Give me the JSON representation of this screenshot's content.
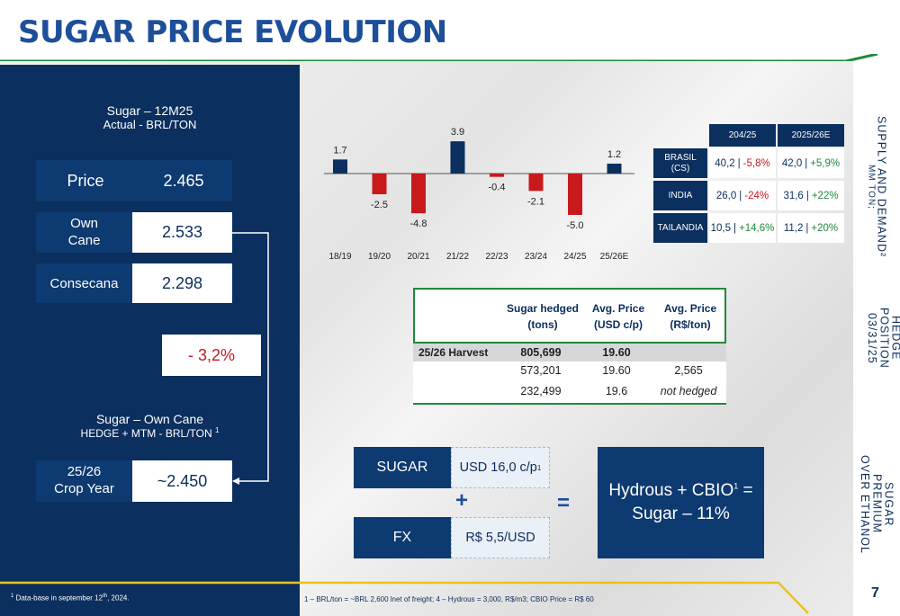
{
  "title": "SUGAR PRICE EVOLUTION",
  "left_panel": {
    "header_line1": "Sugar – 12M25",
    "header_line2": "Actual  - BRL/TON",
    "rows": [
      {
        "label": "Price",
        "value": "2.465"
      },
      {
        "label_line1": "Own",
        "label_line2": "Cane",
        "value": "2.533"
      },
      {
        "label": "Consecana",
        "value": "2.298"
      }
    ],
    "delta": "- 3,2%",
    "hedge_header_line1": "Sugar – Own Cane",
    "hedge_header_line2": "HEDGE + MTM  - BRL/TON",
    "hedge_header_sup": "1",
    "crop_label_line1": "25/26",
    "crop_label_line2": "Crop Year",
    "crop_value": "~2.450",
    "footnote": "Data-base in september 12",
    "footnote_sup_prefix": "1",
    "footnote_th": "th",
    "footnote_suffix": ", 2024."
  },
  "chart_data": {
    "type": "bar",
    "categories": [
      "18/19",
      "19/20",
      "20/21",
      "21/22",
      "22/23",
      "23/24",
      "24/25",
      "25/26E"
    ],
    "values": [
      1.7,
      -2.5,
      -4.8,
      3.9,
      -0.4,
      -2.1,
      -5.0,
      1.2
    ],
    "value_labels": [
      "1.7",
      "-2.5",
      "-4.8",
      "3.9",
      "-0.4",
      "-2.1",
      "-5.0",
      "1.2"
    ],
    "colors": {
      "positive": "#0b2f5e",
      "negative": "#c8191c"
    }
  },
  "supply_table": {
    "headers": [
      "204/25",
      "2025/26E"
    ],
    "rows": [
      {
        "label_line1": "BRASIL",
        "label_line2": "(CS)",
        "c1_a": "40,2",
        "c1_b": "-5,8%",
        "c1_sign": "neg",
        "c2_a": "42,0",
        "c2_b": "+5,9%",
        "c2_sign": "pos"
      },
      {
        "label_line1": "INDIA",
        "label_line2": "",
        "c1_a": "26,0",
        "c1_b": "-24%",
        "c1_sign": "neg",
        "c2_a": "31,6",
        "c2_b": "+22%",
        "c2_sign": "pos"
      },
      {
        "label_line1": "TAILANDIA",
        "label_line2": "",
        "c1_a": "10,5",
        "c1_b": "+14,6%",
        "c1_sign": "pos",
        "c2_a": "11,2",
        "c2_b": "+20%",
        "c2_sign": "pos"
      }
    ],
    "separator": "|"
  },
  "hedge_table": {
    "headers": [
      {
        "line1": "Sugar hedged",
        "line2": "(tons)"
      },
      {
        "line1": "Avg. Price",
        "line2": "(USD c/p)"
      },
      {
        "line1": "Avg. Price",
        "line2": "(R$/ton)"
      }
    ],
    "rows": [
      {
        "label": "25/26 Harvest",
        "tons": "805,699",
        "usd": "19.60",
        "brl": ""
      },
      {
        "label": "",
        "tons": "573,201",
        "usd": "19.60",
        "brl": "2,565"
      },
      {
        "label": "",
        "tons": "232,499",
        "usd": "19.6",
        "brl": "not hedged"
      }
    ]
  },
  "formula": {
    "sugar_label": "SUGAR",
    "sugar_value": "USD 16,0 c/p",
    "sugar_sup": "1",
    "plus": "+",
    "equals": "=",
    "fx_label": "FX",
    "fx_value": "R$ 5,5/USD",
    "result_line1_a": "Hydrous + CBIO",
    "result_sup": "1",
    "result_line1_b": " =",
    "result_line2": "Sugar – 11%"
  },
  "side_labels": {
    "supply_line1": "SUPPLY AND DEMAND²",
    "supply_line2": "MM TON;",
    "hedge_line1": "HEDGE POSITION",
    "hedge_line2": "03/31/25",
    "premium_line1": "SUGAR",
    "premium_line2": "PREMIUM",
    "premium_line3": "OVER ETHANOL"
  },
  "bottom_footnote": "1 – BRL/ton = ~BRL 2,600 lnet of freight; 4 – Hydrous = 3,000, R$/m3; CBIO Price = R$ 60",
  "page_number": "7",
  "colors": {
    "navy": "#0b2f5e",
    "green": "#1f8a3b",
    "red": "#c8191c",
    "gold": "#e8c320",
    "title_blue": "#1d4f9a"
  }
}
